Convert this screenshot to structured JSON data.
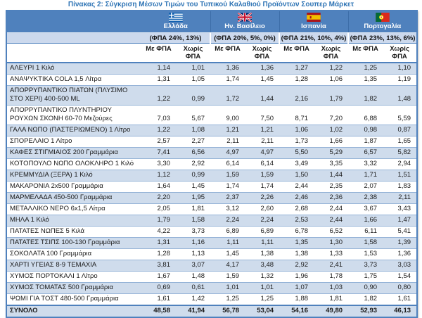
{
  "title": "Πίνακας 2: Σύγκριση Μέσων Τιμών του Τυπικού Καλαθιού Προϊόντων Σουπερ Μάρκετ",
  "colors": {
    "header_bg": "#4f81bd",
    "vat_band_bg": "#ccd9ed",
    "alt_row_bg": "#cfdcec",
    "row_border": "#95b3d7",
    "outer_border": "#4f81bd",
    "title_color": "#2e74b5"
  },
  "countries": [
    {
      "name": "Ελλάδα",
      "vat": "(ΦΠΑ 24%, 13%)",
      "flag_icon": "greece-flag-icon"
    },
    {
      "name": "Ην. Βασίλειο",
      "vat": "(ΦΠΑ 20%, 5%, 0%)",
      "flag_icon": "uk-flag-icon"
    },
    {
      "name": "Ισπανία",
      "vat": "(ΦΠΑ 21%, 10%, 4%)",
      "flag_icon": "spain-flag-icon"
    },
    {
      "name": "Πορτογαλία",
      "vat": "(ΦΠΑ 23%, 13%, 6%)",
      "flag_icon": "portugal-flag-icon"
    }
  ],
  "subheaders": {
    "with_vat": "Με ΦΠΑ",
    "without_vat": "Χωρίς ΦΠΑ"
  },
  "rows": [
    {
      "product": "ΑΛΕΥΡΙ 1 Κιλό",
      "values": [
        "1,14",
        "1,01",
        "1,36",
        "1,36",
        "1,27",
        "1,22",
        "1,25",
        "1,10"
      ]
    },
    {
      "product": "ΑΝΑΨΥΚΤΙΚΑ COLA 1,5 Λίτρα",
      "values": [
        "1,31",
        "1,05",
        "1,74",
        "1,45",
        "1,28",
        "1,06",
        "1,35",
        "1,19"
      ]
    },
    {
      "product": "ΑΠΟΡΡΥΠΑΝΤΙΚΟ ΠΙΑΤΩΝ (ΠΛΥΣΙΜΟ ΣΤΟ ΧΕΡΙ) 400-500 ML",
      "values": [
        "1,22",
        "0,99",
        "1,72",
        "1,44",
        "2,16",
        "1,79",
        "1,82",
        "1,48"
      ]
    },
    {
      "product": "ΑΠΟΡΡΥΠΑΝΤΙΚΟ ΠΛΥΝΤΗΡΙΟΥ ΡΟΥΧΩΝ ΣΚΟΝΗ 60-70 Μεζούρες",
      "values": [
        "7,03",
        "5,67",
        "9,00",
        "7,50",
        "8,71",
        "7,20",
        "6,88",
        "5,59"
      ]
    },
    {
      "product": "ΓΑΛΑ ΝΩΠΟ (ΠΑΣΤΕΡΙΩΜΕΝΟ) 1 Λίτρο",
      "values": [
        "1,22",
        "1,08",
        "1,21",
        "1,21",
        "1,06",
        "1,02",
        "0,98",
        "0,87"
      ]
    },
    {
      "product": "ΣΠΟΡΕΛΑΙΟ 1 Λίτρο",
      "values": [
        "2,57",
        "2,27",
        "2,11",
        "2,11",
        "1,73",
        "1,66",
        "1,87",
        "1,65"
      ]
    },
    {
      "product": "ΚΑΦΕΣ ΣΤΙΓΜΙΑΙΟΣ 200 Γραμμάρια",
      "values": [
        "7,41",
        "6,56",
        "4,97",
        "4,97",
        "5,50",
        "5,29",
        "6,57",
        "5,82"
      ]
    },
    {
      "product": "ΚΟΤΟΠΟΥΛΟ ΝΩΠΟ ΟΛΟΚΛΗΡΟ 1 Κιλό",
      "values": [
        "3,30",
        "2,92",
        "6,14",
        "6,14",
        "3,49",
        "3,35",
        "3,32",
        "2,94"
      ]
    },
    {
      "product": "ΚΡΕΜΜΥΔΙΑ (ΞΕΡΑ) 1 Κιλό",
      "values": [
        "1,12",
        "0,99",
        "1,59",
        "1,59",
        "1,50",
        "1,44",
        "1,71",
        "1,51"
      ]
    },
    {
      "product": "ΜΑΚΑΡΟΝΙΑ 2x500 Γραμμάρια",
      "values": [
        "1,64",
        "1,45",
        "1,74",
        "1,74",
        "2,44",
        "2,35",
        "2,07",
        "1,83"
      ]
    },
    {
      "product": "ΜΑΡΜΕΛΑΔΑ 450-500 Γραμμάρια",
      "values": [
        "2,20",
        "1,95",
        "2,37",
        "2,26",
        "2,46",
        "2,36",
        "2,38",
        "2,11"
      ]
    },
    {
      "product": "ΜΕΤΑΛΛΙΚΟ ΝΕΡΟ 6x1,5 Λίτρα",
      "values": [
        "2,05",
        "1,81",
        "3,12",
        "2,60",
        "2,68",
        "2,44",
        "3,67",
        "3,43"
      ]
    },
    {
      "product": "ΜΗΛΑ 1 Κιλό",
      "values": [
        "1,79",
        "1,58",
        "2,24",
        "2,24",
        "2,53",
        "2,44",
        "1,66",
        "1,47"
      ]
    },
    {
      "product": "ΠΑΤΑΤΕΣ ΝΩΠΕΣ 5 Κιλά",
      "values": [
        "4,22",
        "3,73",
        "6,89",
        "6,89",
        "6,78",
        "6,52",
        "6,11",
        "5,41"
      ]
    },
    {
      "product": "ΠΑΤΑΤΕΣ ΤΣΙΠΣ 100-130 Γραμμάρια",
      "values": [
        "1,31",
        "1,16",
        "1,11",
        "1,11",
        "1,35",
        "1,30",
        "1,58",
        "1,39"
      ]
    },
    {
      "product": "ΣΟΚΟΛΑΤΑ 100 Γραμμάρια",
      "values": [
        "1,28",
        "1,13",
        "1,45",
        "1,38",
        "1,38",
        "1,33",
        "1,53",
        "1,36"
      ]
    },
    {
      "product": "ΧΑΡΤΙ ΥΓΕΙΑΣ 8-9 ΤΕΜΑΧΙΑ",
      "values": [
        "3,81",
        "3,07",
        "4,17",
        "3,48",
        "2,92",
        "2,41",
        "3,73",
        "3,03"
      ]
    },
    {
      "product": "ΧΥΜΟΣ ΠΟΡΤΟΚΑΛΙ 1 Λίτρο",
      "values": [
        "1,67",
        "1,48",
        "1,59",
        "1,32",
        "1,96",
        "1,78",
        "1,75",
        "1,54"
      ]
    },
    {
      "product": "ΧΥΜΟΣ ΤΟΜΑΤΑΣ 500 Γραμμάρια",
      "values": [
        "0,69",
        "0,61",
        "1,01",
        "1,01",
        "1,07",
        "1,03",
        "0,90",
        "0,80"
      ]
    },
    {
      "product": "ΨΩΜΙ ΓΙΑ ΤΟΣΤ 480-500 Γραμμάρια",
      "values": [
        "1,61",
        "1,42",
        "1,25",
        "1,25",
        "1,88",
        "1,81",
        "1,82",
        "1,61"
      ]
    }
  ],
  "total": {
    "label": "ΣΥΝΟΛΟ",
    "values": [
      "48,58",
      "41,94",
      "56,78",
      "53,04",
      "54,16",
      "49,80",
      "52,93",
      "46,13"
    ]
  }
}
